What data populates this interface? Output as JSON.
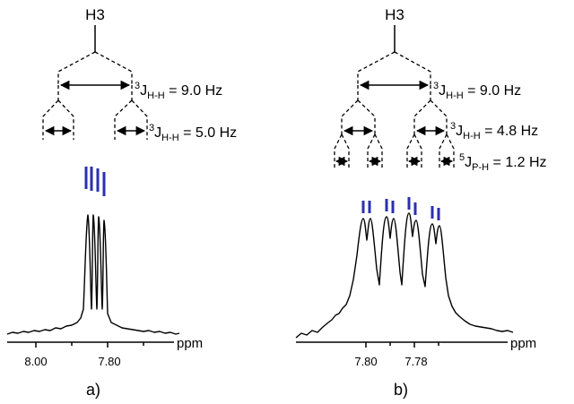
{
  "panel_a": {
    "title": "H3",
    "coupling_1": {
      "sup": "3",
      "j": "J",
      "sub": "H-H",
      "value": " = 9.0 Hz"
    },
    "coupling_2": {
      "sup": "3",
      "j": "J",
      "sub": "H-H",
      "value": " = 5.0 Hz"
    },
    "axis_ticks": [
      "8.00",
      "7.80"
    ],
    "axis_unit": "ppm",
    "panel_label": "a)"
  },
  "panel_b": {
    "title": "H3",
    "coupling_1": {
      "sup": "3",
      "j": "J",
      "sub": "H-H",
      "value": " = 9.0 Hz"
    },
    "coupling_2": {
      "sup": "3",
      "j": "J",
      "sub": "H-H",
      "value": " = 4.8 Hz"
    },
    "coupling_3": {
      "sup": "5",
      "j": "J",
      "sub": "P-H",
      "value": " = 1.2 Hz"
    },
    "axis_ticks": [
      "7.80",
      "7.78"
    ],
    "axis_unit": "ppm",
    "panel_label": "b)"
  },
  "colors": {
    "line_marker": "#2b2fb0",
    "spectrum": "#000000"
  }
}
